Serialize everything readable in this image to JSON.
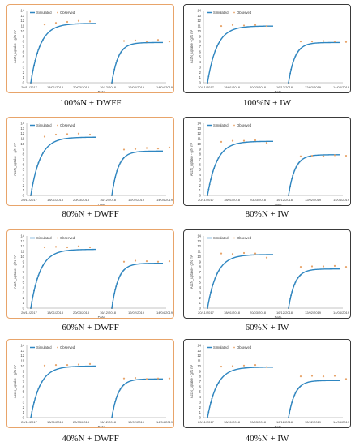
{
  "panels": [
    {
      "caption": "100%N + DWFF",
      "border": "orange",
      "ymax_early": 11.5,
      "ymax_late": 7.8,
      "obs_early": [
        11.3,
        11.6,
        11.8,
        12.0,
        11.9
      ],
      "obs_late": [
        8.1,
        8.2,
        8.0,
        8.3,
        8.0
      ]
    },
    {
      "caption": "100%N + IW",
      "border": "dark",
      "ymax_early": 11.0,
      "ymax_late": 7.8,
      "obs_early": [
        11.0,
        11.2,
        11.1,
        11.2,
        11.0
      ],
      "obs_late": [
        8.0,
        8.0,
        8.1,
        8.0,
        7.9
      ]
    },
    {
      "caption": "80%N + DWFF",
      "border": "orange",
      "ymax_early": 11.3,
      "ymax_late": 8.6,
      "obs_early": [
        11.4,
        11.8,
        11.9,
        12.0,
        11.8
      ],
      "obs_late": [
        8.9,
        9.0,
        9.2,
        9.1,
        9.3
      ]
    },
    {
      "caption": "80%N + IW",
      "border": "dark",
      "ymax_early": 10.5,
      "ymax_late": 7.9,
      "obs_early": [
        10.4,
        10.6,
        10.6,
        10.7,
        10.2
      ],
      "obs_late": [
        7.6,
        7.7,
        7.6,
        7.8,
        7.7
      ]
    },
    {
      "caption": "60%N + DWFF",
      "border": "orange",
      "ymax_early": 11.4,
      "ymax_late": 8.7,
      "obs_early": [
        11.8,
        11.9,
        11.8,
        12.0,
        11.8
      ],
      "obs_late": [
        9.0,
        9.2,
        9.1,
        9.0,
        9.1
      ]
    },
    {
      "caption": "60%N + IW",
      "border": "dark",
      "ymax_early": 10.4,
      "ymax_late": 7.6,
      "obs_early": [
        10.6,
        10.5,
        10.7,
        10.6,
        9.8
      ],
      "obs_late": [
        8.0,
        8.1,
        8.1,
        8.2,
        8.0
      ]
    },
    {
      "caption": "40%N + DWFF",
      "border": "orange",
      "ymax_early": 10.0,
      "ymax_late": 7.5,
      "obs_early": [
        10.1,
        10.2,
        10.2,
        10.3,
        10.4
      ],
      "obs_late": [
        7.6,
        7.7,
        7.5,
        7.6,
        7.6
      ]
    },
    {
      "caption": "40%N + IW",
      "border": "dark",
      "ymax_early": 9.8,
      "ymax_late": 7.2,
      "obs_early": [
        9.9,
        10.0,
        10.1,
        10.2,
        9.8
      ],
      "obs_late": [
        8.0,
        8.1,
        8.0,
        8.1,
        7.5
      ]
    }
  ],
  "chart_data": {
    "type": "line",
    "ylabel": "AccN_uptake - g/N m²",
    "xlabel": "Date",
    "yticks": [
      0,
      1,
      2,
      3,
      4,
      5,
      6,
      7,
      8,
      9,
      10,
      11,
      12,
      13,
      14
    ],
    "ylim": [
      0,
      14
    ],
    "xtick_labels": [
      "20/11/2017",
      "18/01/2018",
      "20/03/2018",
      "16/12/2018",
      "12/02/2019",
      "14/04/2019"
    ],
    "legend": [
      "Simulated",
      "Observed"
    ],
    "legend_position": "top-left",
    "colors": {
      "simulated": "#2e86c1",
      "observed": "#e8a46a"
    }
  }
}
